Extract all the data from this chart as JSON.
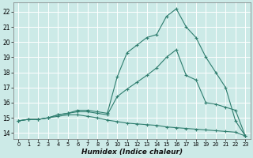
{
  "title": "",
  "xlabel": "Humidex (Indice chaleur)",
  "ylabel": "",
  "background_color": "#cceae7",
  "grid_color": "#ffffff",
  "line_color": "#2e7d6e",
  "x_ticks": [
    0,
    1,
    2,
    3,
    4,
    5,
    6,
    7,
    8,
    9,
    10,
    11,
    12,
    13,
    14,
    15,
    16,
    17,
    18,
    19,
    20,
    21,
    22,
    23
  ],
  "y_ticks": [
    14,
    15,
    16,
    17,
    18,
    19,
    20,
    21,
    22
  ],
  "xlim": [
    -0.5,
    23.5
  ],
  "ylim": [
    13.6,
    22.6
  ],
  "series": [
    {
      "x": [
        0,
        1,
        2,
        3,
        4,
        5,
        6,
        7,
        8,
        9,
        10,
        11,
        12,
        13,
        14,
        15,
        16,
        17,
        18,
        19,
        20,
        21,
        22,
        23
      ],
      "y": [
        14.8,
        14.9,
        14.9,
        15.0,
        15.1,
        15.2,
        15.2,
        15.1,
        15.0,
        14.85,
        14.75,
        14.65,
        14.6,
        14.55,
        14.5,
        14.4,
        14.35,
        14.3,
        14.25,
        14.2,
        14.15,
        14.1,
        14.05,
        13.8
      ]
    },
    {
      "x": [
        0,
        1,
        2,
        3,
        4,
        5,
        6,
        7,
        8,
        9,
        10,
        11,
        12,
        13,
        14,
        15,
        16,
        17,
        18,
        19,
        20,
        21,
        22,
        23
      ],
      "y": [
        14.8,
        14.9,
        14.9,
        15.0,
        15.2,
        15.3,
        15.4,
        15.4,
        15.3,
        15.2,
        16.4,
        16.9,
        17.35,
        17.8,
        18.3,
        19.0,
        19.5,
        17.8,
        17.5,
        16.0,
        15.9,
        15.7,
        15.5,
        13.8
      ]
    },
    {
      "x": [
        0,
        1,
        2,
        3,
        4,
        5,
        6,
        7,
        8,
        9,
        10,
        11,
        12,
        13,
        14,
        15,
        16,
        17,
        18,
        19,
        20,
        21,
        22,
        23
      ],
      "y": [
        14.8,
        14.9,
        14.9,
        15.0,
        15.2,
        15.3,
        15.5,
        15.5,
        15.4,
        15.3,
        17.7,
        19.3,
        19.8,
        20.3,
        20.5,
        21.7,
        22.2,
        21.0,
        20.3,
        19.0,
        18.0,
        17.0,
        14.8,
        13.8
      ]
    }
  ]
}
